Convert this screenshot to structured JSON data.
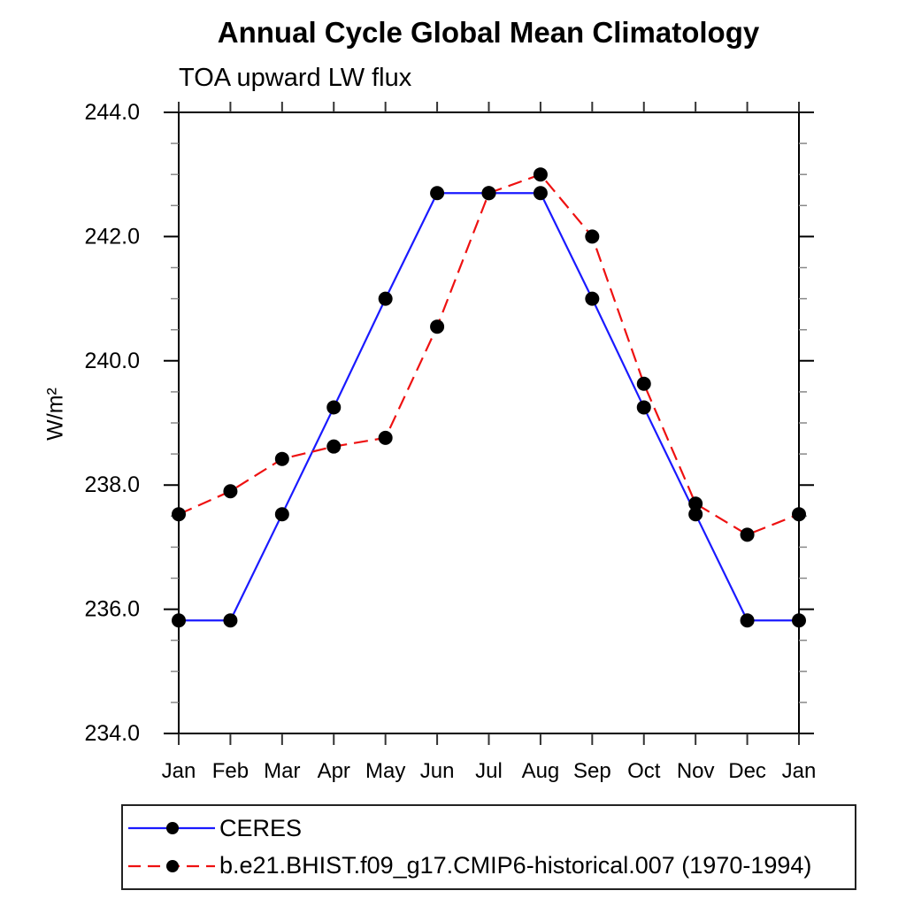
{
  "chart_data": {
    "type": "line",
    "title": "Annual Cycle Global Mean Climatology",
    "subtitle": "TOA upward LW flux",
    "ylabel": "W/m²",
    "x_categories": [
      "Jan",
      "Feb",
      "Mar",
      "Apr",
      "May",
      "Jun",
      "Jul",
      "Aug",
      "Sep",
      "Oct",
      "Nov",
      "Dec",
      "Jan"
    ],
    "ylim": [
      234.0,
      244.0
    ],
    "y_major_ticks": [
      234.0,
      236.0,
      238.0,
      240.0,
      242.0,
      244.0
    ],
    "y_major_tick_labels": [
      "234.0",
      "236.0",
      "238.0",
      "240.0",
      "242.0",
      "244.0"
    ],
    "y_minor_tick_step": 0.5,
    "grid": "off",
    "legend_position": "bottom-left",
    "series": [
      {
        "name": "CERES",
        "line_style": "solid",
        "line_color": "#1a1aff",
        "marker": "filled-circle",
        "marker_color": "#000000",
        "values": [
          235.82,
          235.82,
          237.53,
          239.25,
          241.0,
          242.7,
          242.7,
          242.7,
          241.0,
          239.25,
          237.53,
          235.82,
          235.82
        ]
      },
      {
        "name": "b.e21.BHIST.f09_g17.CMIP6-historical.007 (1970-1994)",
        "line_style": "dashed",
        "line_color": "#ee1111",
        "marker": "filled-circle",
        "marker_color": "#000000",
        "values": [
          237.53,
          237.9,
          238.42,
          238.62,
          238.76,
          240.55,
          242.7,
          243.0,
          242.0,
          239.63,
          237.7,
          237.2,
          237.53
        ]
      }
    ]
  },
  "colors": {
    "background": "#ffffff",
    "axis": "#000000",
    "x_tick": "#333333",
    "minor_tick": "#888888",
    "text": "#000000"
  }
}
